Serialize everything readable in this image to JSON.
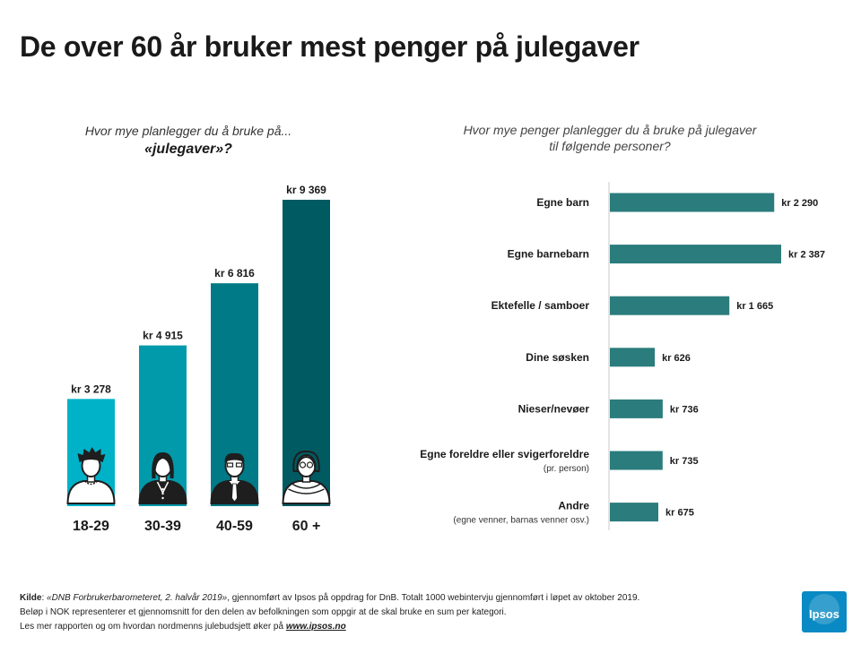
{
  "title": "De over 60 år bruker mest penger på julegaver",
  "colors": {
    "age1": "#00b2c8",
    "age2": "#009aaa",
    "age3": "#007a86",
    "age4": "#005a62",
    "hbar": "#2b7c7c",
    "axis": "#c8c8c8"
  },
  "left_chart": {
    "question_line1": "Hvor mye planlegger du å bruke på...",
    "question_line2": "«julegaver»?"
  },
  "right_chart": {
    "question_line1": "Hvor mye penger planlegger du å bruke på julegaver",
    "question_line2": "til følgende personer?"
  },
  "chart_data": [
    {
      "type": "bar",
      "title": "Hvor mye planlegger du å bruke på... «julegaver»?",
      "categories": [
        "18-29",
        "30-39",
        "40-59",
        "60 +"
      ],
      "values": [
        3278,
        4915,
        6816,
        9369
      ],
      "data_labels": [
        "kr 3 278",
        "kr 4 915",
        "kr 6 816",
        "kr 9 369"
      ],
      "icons": [
        "young-person-icon",
        "woman-icon",
        "man-with-tie-icon",
        "elderly-woman-icon"
      ],
      "ylim": [
        0,
        9369
      ]
    },
    {
      "type": "bar",
      "orientation": "horizontal",
      "title": "Hvor mye penger planlegger du å bruke på julegaver til følgende personer?",
      "categories": [
        "Egne barn",
        "Egne barnebarn",
        "Ektefelle / samboer",
        "Dine søsken",
        "Nieser/nevøer",
        "Egne foreldre eller svigerforeldre",
        "Andre"
      ],
      "sublabels": [
        "",
        "",
        "",
        "",
        "",
        "(pr. person)",
        "(egne venner, barnas venner osv.)"
      ],
      "values": [
        2290,
        2387,
        1665,
        626,
        736,
        735,
        675
      ],
      "data_labels": [
        "kr 2 290",
        "kr 2 387",
        "kr 1 665",
        "kr 626",
        "kr 736",
        "kr 735",
        "kr 675"
      ],
      "xlim": [
        0,
        2387
      ]
    }
  ],
  "footer": {
    "kilde_label": "Kilde",
    "kilde_sep": ": ",
    "kilde_source": "«DNB Forbrukerbarometeret, 2. halvår 2019»",
    "kilde_rest": ", gjennomført av Ipsos på oppdrag for DnB. Totalt 1000 webintervju gjennomført i løpet av oktober 2019.",
    "line2": "Beløp i NOK representerer et gjennomsnitt for den delen av befolkningen som oppgir at de skal bruke en sum per kategori.",
    "line3_text": "Les mer rapporten og om hvordan nordmenns julebudsjett øker på ",
    "line3_link": "www.ipsos.no"
  },
  "logo": {
    "text": "Ipsos",
    "color": "#0a8ac4"
  }
}
